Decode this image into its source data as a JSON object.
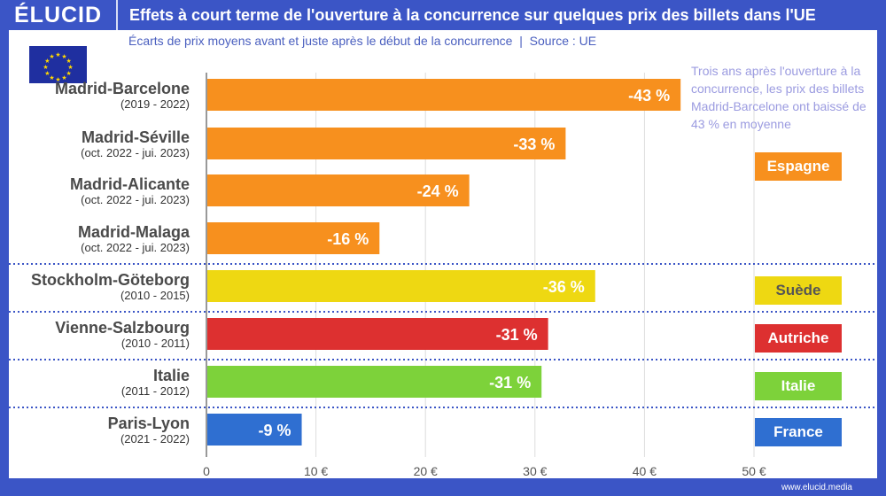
{
  "header": {
    "logo": "ÉLUCID",
    "title": "Effets à court terme de l'ouverture à la concurrence sur quelques prix des billets dans l'UE"
  },
  "subtitle": "Écarts de prix moyens avant et juste après le début de la concurrence  |  Source : UE",
  "note": "Trois ans après l'ouverture à la concurrence, les prix des billets Madrid-Barcelone ont baissé de 43 % en moyenne",
  "footer": "www.elucid.media",
  "colors": {
    "espagne": "#f7901e",
    "suede": "#eed812",
    "autriche": "#dd3030",
    "italie": "#7dd23a",
    "france": "#2f6fd1",
    "frame": "#3b55c6"
  },
  "countries": [
    {
      "label": "Espagne",
      "color": "#f7901e",
      "text": "#fff"
    },
    {
      "label": "Suède",
      "color": "#eed812",
      "text": "#555"
    },
    {
      "label": "Autriche",
      "color": "#dd3030",
      "text": "#fff"
    },
    {
      "label": "Italie",
      "color": "#7dd23a",
      "text": "#fff"
    },
    {
      "label": "France",
      "color": "#2f6fd1",
      "text": "#fff"
    }
  ],
  "chart_data": {
    "type": "bar",
    "orientation": "horizontal",
    "categories": [
      "Madrid-Barcelone",
      "Madrid-Séville",
      "Madrid-Alicante",
      "Madrid-Malaga",
      "Stockholm-Göteborg",
      "Vienne-Salzbourg",
      "Italie",
      "Paris-Lyon"
    ],
    "periods": [
      "(2019 - 2022)",
      "(oct. 2022 - jui. 2023)",
      "(oct. 2022 - jui. 2023)",
      "(oct. 2022 - jui. 2023)",
      "(2010 - 2015)",
      "(2010 - 2011)",
      "(2011 - 2012)",
      "(2021 - 2022)"
    ],
    "values": [
      43.3,
      32.8,
      24.0,
      15.8,
      35.5,
      31.2,
      30.6,
      8.7
    ],
    "data_labels": [
      "-43 %",
      "-33 %",
      "-24 %",
      "-16 %",
      "-36 %",
      "-31 %",
      "-31 %",
      "-9 %"
    ],
    "colors": [
      "#f7901e",
      "#f7901e",
      "#f7901e",
      "#f7901e",
      "#eed812",
      "#dd3030",
      "#7dd23a",
      "#2f6fd1"
    ],
    "xlim": [
      0,
      50
    ],
    "xticks": [
      0,
      10,
      20,
      30,
      40,
      50
    ],
    "xtick_labels": [
      "0",
      "10 €",
      "20 €",
      "30 €",
      "40 €",
      "50 €"
    ],
    "grid": true
  }
}
